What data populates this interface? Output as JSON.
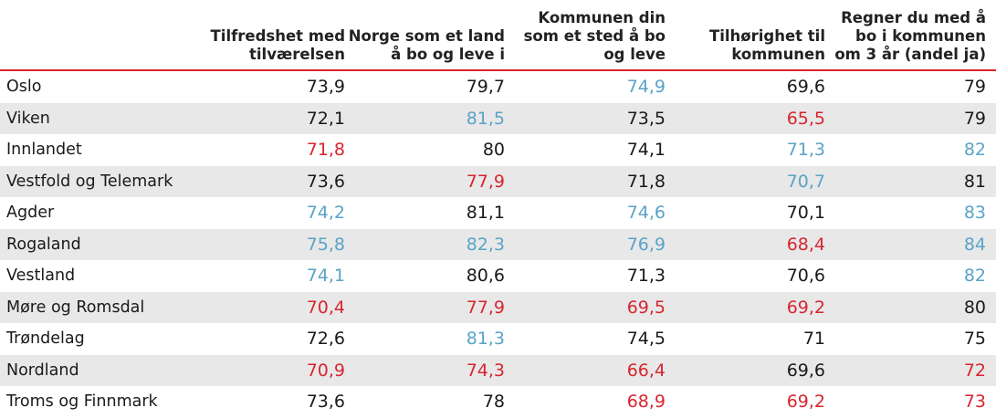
{
  "chart_data": {
    "type": "table",
    "columns": [
      "",
      "Tilfredshet med\ntilværelsen",
      "Norge som et land\nå bo og leve i",
      "Kommunen din\nsom et sted å bo\nog leve",
      "Tilhørighet til\nkommunen",
      "Regner du med å\nbo i kommunen\nom 3 år (andel ja)"
    ],
    "rows": [
      {
        "region": "Oslo",
        "values": [
          "73,9",
          "79,7",
          "74,9",
          "69,6",
          "79"
        ],
        "status": [
          "n",
          "n",
          "h",
          "n",
          "n"
        ]
      },
      {
        "region": "Viken",
        "values": [
          "72,1",
          "81,5",
          "73,5",
          "65,5",
          "79"
        ],
        "status": [
          "n",
          "h",
          "n",
          "l",
          "n"
        ]
      },
      {
        "region": "Innlandet",
        "values": [
          "71,8",
          "80",
          "74,1",
          "71,3",
          "82"
        ],
        "status": [
          "l",
          "n",
          "n",
          "h",
          "h"
        ]
      },
      {
        "region": "Vestfold og Telemark",
        "values": [
          "73,6",
          "77,9",
          "71,8",
          "70,7",
          "81"
        ],
        "status": [
          "n",
          "l",
          "n",
          "h",
          "n"
        ]
      },
      {
        "region": "Agder",
        "values": [
          "74,2",
          "81,1",
          "74,6",
          "70,1",
          "83"
        ],
        "status": [
          "h",
          "n",
          "h",
          "n",
          "h"
        ]
      },
      {
        "region": "Rogaland",
        "values": [
          "75,8",
          "82,3",
          "76,9",
          "68,4",
          "84"
        ],
        "status": [
          "h",
          "h",
          "h",
          "l",
          "h"
        ]
      },
      {
        "region": "Vestland",
        "values": [
          "74,1",
          "80,6",
          "71,3",
          "70,6",
          "82"
        ],
        "status": [
          "h",
          "n",
          "n",
          "n",
          "h"
        ]
      },
      {
        "region": "Møre og Romsdal",
        "values": [
          "70,4",
          "77,9",
          "69,5",
          "69,2",
          "80"
        ],
        "status": [
          "l",
          "l",
          "l",
          "l",
          "n"
        ]
      },
      {
        "region": "Trøndelag",
        "values": [
          "72,6",
          "81,3",
          "74,5",
          "71",
          "75"
        ],
        "status": [
          "n",
          "h",
          "n",
          "n",
          "n"
        ]
      },
      {
        "region": "Nordland",
        "values": [
          "70,9",
          "74,3",
          "66,4",
          "69,6",
          "72"
        ],
        "status": [
          "l",
          "l",
          "l",
          "n",
          "l"
        ]
      },
      {
        "region": "Troms og Finnmark",
        "values": [
          "73,6",
          "78",
          "68,9",
          "69,2",
          "73"
        ],
        "status": [
          "n",
          "n",
          "l",
          "l",
          "l"
        ]
      }
    ],
    "colors": {
      "n": "#1a1a1a",
      "h": "#5aa3c8",
      "l": "#d8262f",
      "header_rule": "#d8262f",
      "stripe": "#e8e8e8"
    }
  }
}
